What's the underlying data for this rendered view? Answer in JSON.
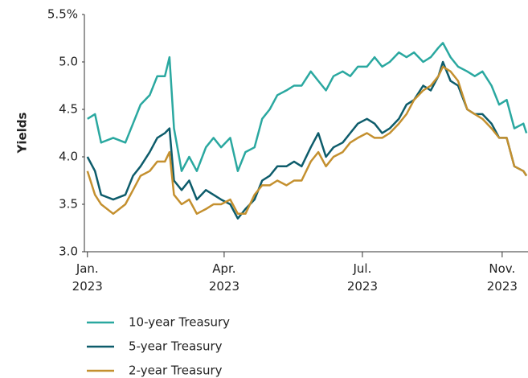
{
  "chart_data": {
    "type": "line",
    "y_label": "Yields",
    "x": [
      0,
      5,
      9,
      17,
      25,
      30,
      35,
      41,
      46,
      51,
      54,
      57,
      62,
      67,
      72,
      78,
      83,
      88,
      94,
      99,
      104,
      110,
      115,
      120,
      125,
      131,
      136,
      141,
      147,
      152,
      157,
      162,
      168,
      173,
      178,
      184,
      189,
      194,
      199,
      205,
      210,
      215,
      221,
      226,
      231,
      234,
      239,
      244,
      250,
      255,
      260,
      266,
      271,
      276,
      281,
      287,
      289
    ],
    "series": [
      {
        "name": "10-year Treasury",
        "color": "#2aa8a0",
        "values": [
          4.4,
          4.45,
          4.15,
          4.2,
          4.15,
          4.35,
          4.55,
          4.65,
          4.85,
          4.85,
          5.05,
          4.3,
          3.85,
          4.0,
          3.85,
          4.1,
          4.2,
          4.1,
          4.2,
          3.85,
          4.05,
          4.1,
          4.4,
          4.5,
          4.65,
          4.7,
          4.75,
          4.75,
          4.9,
          4.8,
          4.7,
          4.85,
          4.9,
          4.85,
          4.95,
          4.95,
          5.05,
          4.95,
          5.0,
          5.1,
          5.05,
          5.1,
          5.0,
          5.05,
          5.15,
          5.2,
          5.05,
          4.95,
          4.9,
          4.85,
          4.9,
          4.75,
          4.55,
          4.6,
          4.3,
          4.35,
          4.25
        ]
      },
      {
        "name": "5-year Treasury",
        "color": "#0d5c6b",
        "values": [
          4.0,
          3.85,
          3.6,
          3.55,
          3.6,
          3.8,
          3.9,
          4.05,
          4.2,
          4.25,
          4.3,
          3.75,
          3.65,
          3.75,
          3.55,
          3.65,
          3.6,
          3.55,
          3.5,
          3.35,
          3.45,
          3.55,
          3.75,
          3.8,
          3.9,
          3.9,
          3.95,
          3.9,
          4.1,
          4.25,
          4.0,
          4.1,
          4.15,
          4.25,
          4.35,
          4.4,
          4.35,
          4.25,
          4.3,
          4.4,
          4.55,
          4.6,
          4.75,
          4.7,
          4.85,
          5.0,
          4.8,
          4.75,
          4.5,
          4.45,
          4.45,
          4.35,
          4.2,
          4.2,
          3.9,
          3.85,
          3.8
        ]
      },
      {
        "name": "2-year Treasury",
        "color": "#c4902f",
        "values": [
          3.85,
          3.6,
          3.5,
          3.4,
          3.5,
          3.65,
          3.8,
          3.85,
          3.95,
          3.95,
          4.05,
          3.6,
          3.5,
          3.55,
          3.4,
          3.45,
          3.5,
          3.5,
          3.55,
          3.4,
          3.4,
          3.6,
          3.7,
          3.7,
          3.75,
          3.7,
          3.75,
          3.75,
          3.95,
          4.05,
          3.9,
          4.0,
          4.05,
          4.15,
          4.2,
          4.25,
          4.2,
          4.2,
          4.25,
          4.35,
          4.45,
          4.6,
          4.7,
          4.75,
          4.85,
          4.95,
          4.9,
          4.8,
          4.5,
          4.45,
          4.4,
          4.3,
          4.2,
          4.2,
          3.9,
          3.85,
          3.8
        ]
      }
    ],
    "xlim": [
      -2,
      290
    ],
    "xticks": [
      {
        "value": 0,
        "label": "Jan.\n2023"
      },
      {
        "value": 90,
        "label": "Apr.\n2023"
      },
      {
        "value": 181,
        "label": "Jul.\n2023"
      },
      {
        "value": 273,
        "label": "Nov.\n2023"
      }
    ],
    "ylim": [
      3.0,
      5.5
    ],
    "yticks": [
      {
        "value": 3.0,
        "label": "3.0"
      },
      3.5,
      {
        "value": 4.0,
        "label": "4.0"
      },
      4.5,
      {
        "value": 5.0,
        "label": "5.0"
      },
      {
        "value": 5.5,
        "label": "5.5%"
      }
    ],
    "grid": false,
    "legend": "bottom-left"
  }
}
